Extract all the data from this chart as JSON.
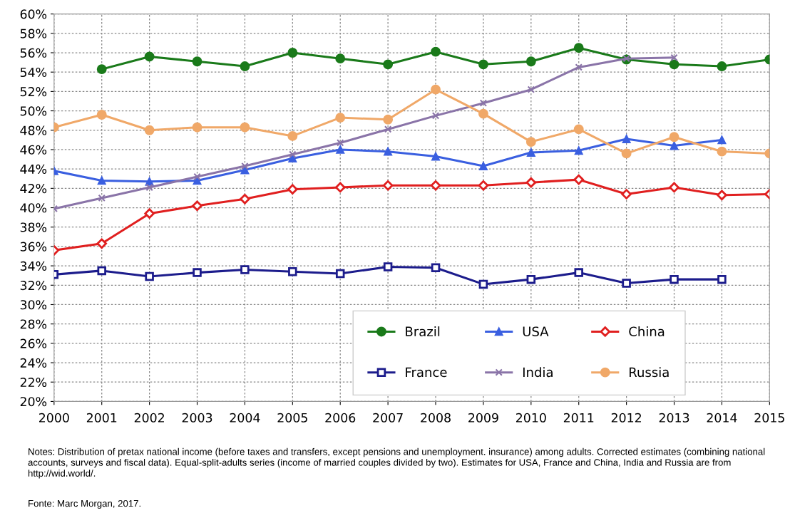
{
  "chart_data": {
    "type": "line",
    "x": [
      2000,
      2001,
      2002,
      2003,
      2004,
      2005,
      2006,
      2007,
      2008,
      2009,
      2010,
      2011,
      2012,
      2013,
      2014,
      2015
    ],
    "series": [
      {
        "name": "Brazil",
        "color": "#1a7a1a",
        "marker": "circle",
        "values": [
          null,
          54.3,
          55.6,
          55.1,
          54.6,
          56.0,
          55.4,
          54.8,
          56.1,
          54.8,
          55.1,
          56.5,
          55.3,
          54.8,
          54.6,
          55.3
        ]
      },
      {
        "name": "USA",
        "color": "#3a5fe0",
        "marker": "triangle",
        "values": [
          43.8,
          42.8,
          42.7,
          42.8,
          43.9,
          45.1,
          46.0,
          45.8,
          45.3,
          44.3,
          45.7,
          45.9,
          47.1,
          46.4,
          47.0,
          null
        ]
      },
      {
        "name": "China",
        "color": "#e01f1f",
        "marker": "diamond",
        "values": [
          35.6,
          36.3,
          39.4,
          40.2,
          40.9,
          41.9,
          42.1,
          42.3,
          42.3,
          42.3,
          42.6,
          42.9,
          41.4,
          42.1,
          41.3,
          41.4
        ]
      },
      {
        "name": "France",
        "color": "#1c1c8c",
        "marker": "square",
        "values": [
          33.1,
          33.5,
          32.9,
          33.3,
          33.6,
          33.4,
          33.2,
          33.9,
          33.8,
          32.1,
          32.6,
          33.3,
          32.2,
          32.6,
          32.6,
          null
        ]
      },
      {
        "name": "India",
        "color": "#8a74a8",
        "marker": "cross",
        "values": [
          39.9,
          41.0,
          42.1,
          43.2,
          44.3,
          45.5,
          46.7,
          48.1,
          49.5,
          50.8,
          52.2,
          54.5,
          55.4,
          55.5,
          null,
          null
        ]
      },
      {
        "name": "Russia",
        "color": "#f0a868",
        "marker": "circle",
        "values": [
          48.3,
          49.6,
          48.0,
          48.3,
          48.3,
          47.4,
          49.3,
          49.1,
          52.2,
          49.7,
          46.8,
          48.1,
          45.6,
          47.3,
          45.8,
          45.6
        ]
      }
    ],
    "xlim": [
      2000,
      2015
    ],
    "xticks": [
      2000,
      2001,
      2002,
      2003,
      2004,
      2005,
      2006,
      2007,
      2008,
      2009,
      2010,
      2011,
      2012,
      2013,
      2014,
      2015
    ],
    "ylim": [
      20,
      60
    ],
    "yticks": [
      {
        "value": 20,
        "label": "20%"
      },
      {
        "value": 22,
        "label": "22%"
      },
      {
        "value": 24,
        "label": "24%"
      },
      {
        "value": 26,
        "label": "26%"
      },
      {
        "value": 28,
        "label": "28%"
      },
      {
        "value": 30,
        "label": "30%"
      },
      {
        "value": 32,
        "label": "32%"
      },
      {
        "value": 34,
        "label": "34%"
      },
      {
        "value": 36,
        "label": "36%"
      },
      {
        "value": 38,
        "label": "38%"
      },
      {
        "value": 40,
        "label": "40%"
      },
      {
        "value": 42,
        "label": "42%"
      },
      {
        "value": 44,
        "label": "44%"
      },
      {
        "value": 46,
        "label": "46%"
      },
      {
        "value": 48,
        "label": "48%"
      },
      {
        "value": 50,
        "label": "50%"
      },
      {
        "value": 52,
        "label": "52%"
      },
      {
        "value": 54,
        "label": "54%"
      },
      {
        "value": 56,
        "label": "56%"
      },
      {
        "value": 58,
        "label": "58%"
      },
      {
        "value": 60,
        "label": "60%"
      }
    ],
    "grid": true,
    "legend": "bottom",
    "line_style": "solid",
    "annotations": [
      "Notes: Distribution of pretax national income (before taxes and transfers, except pensions and unemployment. insurance) among adults. Corrected estimates (combining national accounts, surveys and fiscal data). Equal-split-adults series (income of married couples divided by two). Estimates for USA, France and China, India and Russia are from http://wid.world/.",
      "Fonte: Marc Morgan, 2017."
    ]
  }
}
